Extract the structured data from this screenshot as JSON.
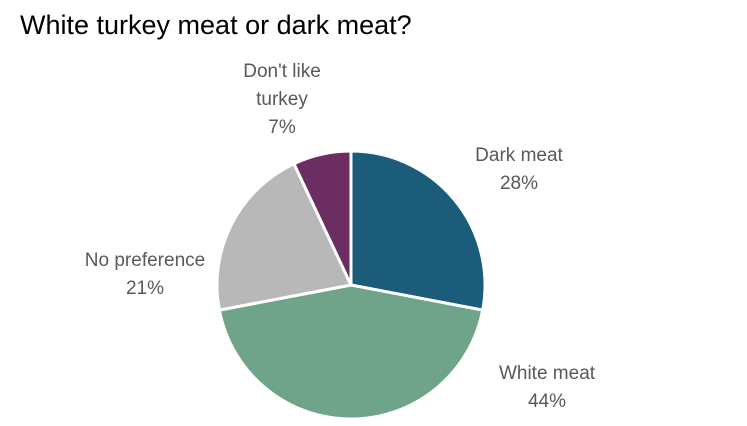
{
  "chart_data": {
    "type": "pie",
    "title": "White turkey meat or dark meat?",
    "categories": [
      "Dark meat",
      "White meat",
      "No preference",
      "Don't like turkey"
    ],
    "values": [
      28,
      44,
      21,
      7
    ],
    "value_labels": [
      "28%",
      "44%",
      "21%",
      "7%"
    ],
    "colors": [
      "#1a5c7a",
      "#6fa38a",
      "#b8b8b8",
      "#6b2d62"
    ]
  }
}
